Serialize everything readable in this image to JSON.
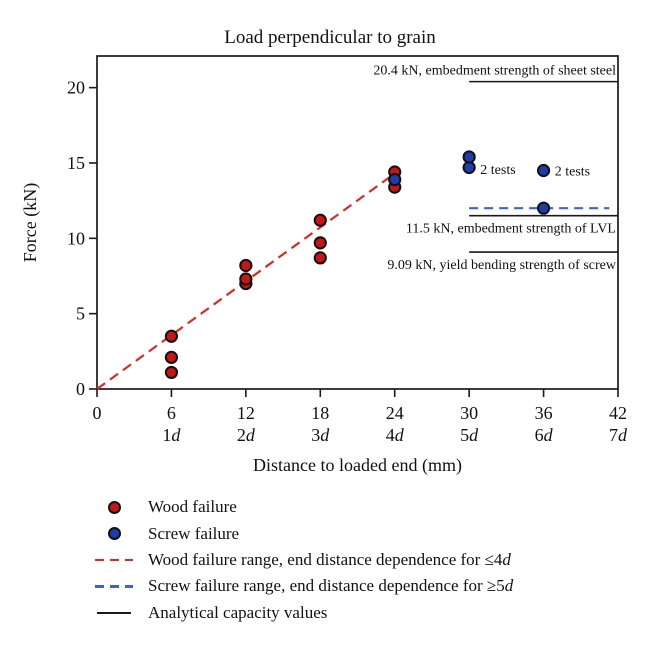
{
  "chart_data": {
    "type": "scatter",
    "title": "Load perpendicular to grain",
    "xlabel": "Distance to loaded end (mm)",
    "ylabel": "Force (kN)",
    "xlim": [
      0,
      42
    ],
    "ylim": [
      0,
      22.1
    ],
    "grid": false,
    "x_ticks": [
      0,
      6,
      12,
      18,
      24,
      30,
      36,
      42
    ],
    "x_subticks": [
      "",
      "1d",
      "2d",
      "3d",
      "4d",
      "5d",
      "6d",
      "7d"
    ],
    "y_ticks": [
      0,
      5,
      10,
      15,
      20
    ],
    "colors": {
      "wood_marker": "#c81414",
      "screw_marker": "#1e3cae",
      "wood_line": "#e02820",
      "screw_line": "#3f5fe0",
      "axis": "#1a1a1a",
      "background": "#ffffff"
    },
    "series": [
      {
        "name": "Wood failure",
        "marker": "circle",
        "color": "#c81414",
        "points": [
          [
            6,
            1.1
          ],
          [
            6,
            2.1
          ],
          [
            6,
            3.5
          ],
          [
            12,
            7.0
          ],
          [
            12,
            7.3
          ],
          [
            12,
            8.2
          ],
          [
            18,
            8.7
          ],
          [
            18,
            9.7
          ],
          [
            18,
            11.2
          ],
          [
            24,
            13.4
          ],
          [
            24,
            14.4
          ]
        ]
      },
      {
        "name": "Screw failure",
        "marker": "circle",
        "color": "#1e3cae",
        "points": [
          [
            24,
            13.9
          ],
          [
            30,
            14.7
          ],
          [
            30,
            15.4
          ],
          [
            36,
            14.5
          ],
          [
            36,
            12.0
          ]
        ]
      }
    ],
    "trend_lines": [
      {
        "name": "wood-failure-range",
        "style": "dashed",
        "color": "#e02820",
        "dash": "10 6",
        "x1": 0,
        "y1": 0,
        "x2": 24,
        "y2": 14.3
      },
      {
        "name": "screw-failure-range",
        "style": "dashed",
        "color": "#3f5fe0",
        "dash": "9 6",
        "x1": 30,
        "y1": 12.0,
        "x2": 41.3,
        "y2": 12.0
      }
    ],
    "capacity_lines": [
      {
        "value": 20.4,
        "x1": 30,
        "x2": 42,
        "label": "20.4 kN, embedment strength of sheet steel",
        "label_side": "above"
      },
      {
        "value": 11.5,
        "x1": 30,
        "x2": 42,
        "label": "11.5 kN, embedment strength of LVL",
        "label_side": "below"
      },
      {
        "value": 9.09,
        "x1": 30,
        "x2": 42,
        "label": "9.09 kN, yield bending strength of screw",
        "label_side": "below"
      }
    ],
    "point_annotations": [
      {
        "text": "2 tests",
        "x": 30.9,
        "y": 14.6
      },
      {
        "text": "2 tests",
        "x": 36.9,
        "y": 14.5
      }
    ],
    "legend": [
      {
        "type": "marker",
        "color": "#c81414",
        "label_text": "Wood failure",
        "label_italic": ""
      },
      {
        "type": "marker",
        "color": "#1e3cae",
        "label_text": "Screw failure",
        "label_italic": ""
      },
      {
        "type": "dashed-line",
        "color": "#e02820",
        "label_text": "Wood failure range, end distance dependence for ≤4",
        "label_italic": "d"
      },
      {
        "type": "dashed-line",
        "color": "#3f5fe0",
        "label_text": "Screw failure range, end distance dependence for ≥5",
        "label_italic": "d"
      },
      {
        "type": "solid-line",
        "color": "#1a1a1a",
        "label_text": "Analytical capacity values",
        "label_italic": ""
      }
    ]
  }
}
